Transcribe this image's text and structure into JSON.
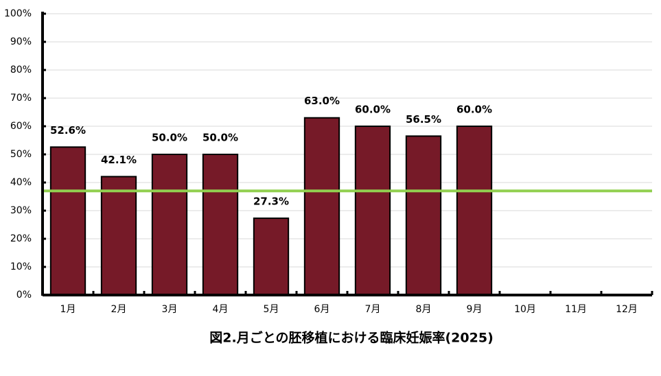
{
  "chart_data": {
    "type": "bar",
    "title": "図2.月ごとの胚移植における臨床妊娠率(2025)",
    "categories": [
      "1月",
      "2月",
      "3月",
      "4月",
      "5月",
      "6月",
      "7月",
      "8月",
      "9月",
      "10月",
      "11月",
      "12月"
    ],
    "values": [
      52.6,
      42.1,
      50.0,
      50.0,
      27.3,
      63.0,
      60.0,
      56.5,
      60.0,
      null,
      null,
      null
    ],
    "value_labels": [
      "52.6%",
      "42.1%",
      "50.0%",
      "50.0%",
      "27.3%",
      "63.0%",
      "60.0%",
      "56.5%",
      "60.0%",
      null,
      null,
      null
    ],
    "color": "#761a28",
    "reference_line": {
      "value": 37,
      "color": "#92d050"
    },
    "ylim": [
      0,
      100
    ],
    "yticks": [
      {
        "value": 0,
        "label": "0%"
      },
      {
        "value": 10,
        "label": "10%"
      },
      {
        "value": 20,
        "label": "20%"
      },
      {
        "value": 30,
        "label": "30%"
      },
      {
        "value": 40,
        "label": "40%"
      },
      {
        "value": 50,
        "label": "50%"
      },
      {
        "value": 60,
        "label": "60%"
      },
      {
        "value": 70,
        "label": "70%"
      },
      {
        "value": 80,
        "label": "80%"
      },
      {
        "value": 90,
        "label": "90%"
      },
      {
        "value": 100,
        "label": "100%"
      }
    ],
    "grid": true
  }
}
